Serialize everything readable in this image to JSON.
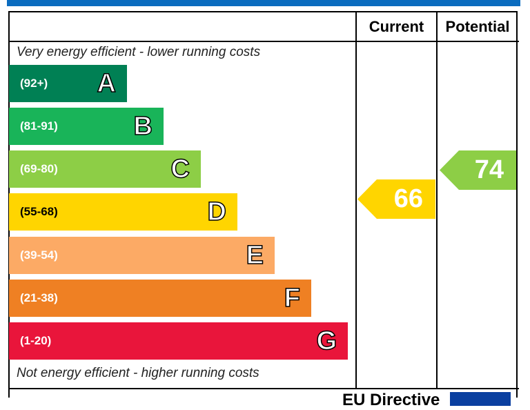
{
  "chart_data": {
    "type": "bar",
    "header": {
      "current": "Current",
      "potential": "Potential"
    },
    "top_note": "Very energy efficient - lower running costs",
    "bottom_note": "Not energy efficient - higher running costs",
    "bands": [
      {
        "letter": "A",
        "range": "(92+)",
        "color": "#008054"
      },
      {
        "letter": "B",
        "range": "(81-91)",
        "color": "#19b459"
      },
      {
        "letter": "C",
        "range": "(69-80)",
        "color": "#8dce46"
      },
      {
        "letter": "D",
        "range": "(55-68)",
        "color": "#ffd500"
      },
      {
        "letter": "E",
        "range": "(39-54)",
        "color": "#fcaa65"
      },
      {
        "letter": "F",
        "range": "(21-38)",
        "color": "#ef8023"
      },
      {
        "letter": "G",
        "range": "(1-20)",
        "color": "#e9153b"
      }
    ],
    "current": {
      "value": "66",
      "band": "D",
      "color": "#ffd500"
    },
    "potential": {
      "value": "74",
      "band": "C",
      "color": "#8dce46"
    },
    "footer": "EU Directive"
  }
}
